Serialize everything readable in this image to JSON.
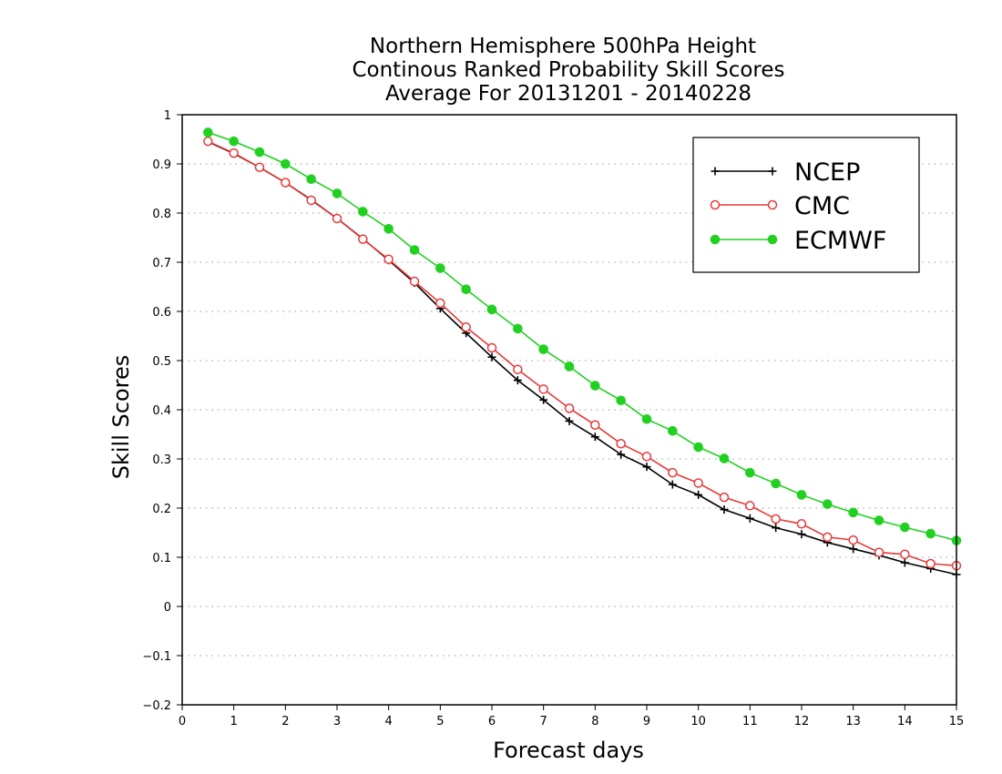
{
  "chart_data": {
    "type": "line",
    "title_lines": [
      "Northern Hemisphere 500hPa Height",
      "Continous Ranked Probability Skill Scores",
      "Average For 20131201 - 20140228"
    ],
    "xlabel": "Forecast days",
    "ylabel": "Skill Scores",
    "xlim": [
      0,
      15
    ],
    "ylim": [
      -0.2,
      1
    ],
    "x_ticks": [
      0,
      1,
      2,
      3,
      4,
      5,
      6,
      7,
      8,
      9,
      10,
      11,
      12,
      13,
      14,
      15
    ],
    "x_tick_labels": [
      "0",
      "1",
      "2",
      "3",
      "4",
      "5",
      "6",
      "7",
      "8",
      "9",
      "10",
      "11",
      "12",
      "13",
      "14",
      "15"
    ],
    "y_ticks": [
      -0.2,
      -0.1,
      0,
      0.1,
      0.2,
      0.3,
      0.4,
      0.5,
      0.6,
      0.7,
      0.8,
      0.9,
      1
    ],
    "y_tick_labels": [
      "−0.2",
      "−0.1",
      "0",
      "0.1",
      "0.2",
      "0.3",
      "0.4",
      "0.5",
      "0.6",
      "0.7",
      "0.8",
      "0.9",
      "1"
    ],
    "grid": "horizontal dotted",
    "legend_position": "top-right",
    "x": [
      0.5,
      1,
      1.5,
      2,
      2.5,
      3,
      3.5,
      4,
      4.5,
      5,
      5.5,
      6,
      6.5,
      7,
      7.5,
      8,
      8.5,
      9,
      9.5,
      10,
      10.5,
      11,
      11.5,
      12,
      12.5,
      13,
      13.5,
      14,
      14.5,
      15
    ],
    "series": [
      {
        "name": "NCEP",
        "color": "#000000",
        "marker": "plus",
        "values": [
          0.945,
          0.921,
          0.893,
          0.862,
          0.827,
          0.789,
          0.748,
          0.704,
          0.658,
          0.606,
          0.556,
          0.507,
          0.46,
          0.42,
          0.377,
          0.345,
          0.309,
          0.284,
          0.248,
          0.227,
          0.197,
          0.179,
          0.16,
          0.147,
          0.13,
          0.117,
          0.104,
          0.089,
          0.077,
          0.065
        ]
      },
      {
        "name": "CMC",
        "color": "#e83a3a",
        "marker": "open-circle",
        "values": [
          0.946,
          0.922,
          0.893,
          0.862,
          0.826,
          0.789,
          0.747,
          0.706,
          0.661,
          0.617,
          0.568,
          0.526,
          0.482,
          0.442,
          0.403,
          0.369,
          0.331,
          0.305,
          0.272,
          0.251,
          0.222,
          0.205,
          0.178,
          0.168,
          0.141,
          0.135,
          0.11,
          0.106,
          0.087,
          0.083
        ]
      },
      {
        "name": "ECMWF",
        "color": "#22d022",
        "marker": "filled-circle",
        "values": [
          0.964,
          0.946,
          0.924,
          0.9,
          0.869,
          0.84,
          0.803,
          0.768,
          0.725,
          0.688,
          0.645,
          0.604,
          0.565,
          0.523,
          0.488,
          0.449,
          0.419,
          0.381,
          0.357,
          0.324,
          0.301,
          0.272,
          0.25,
          0.227,
          0.208,
          0.191,
          0.175,
          0.161,
          0.148,
          0.134
        ]
      }
    ]
  }
}
